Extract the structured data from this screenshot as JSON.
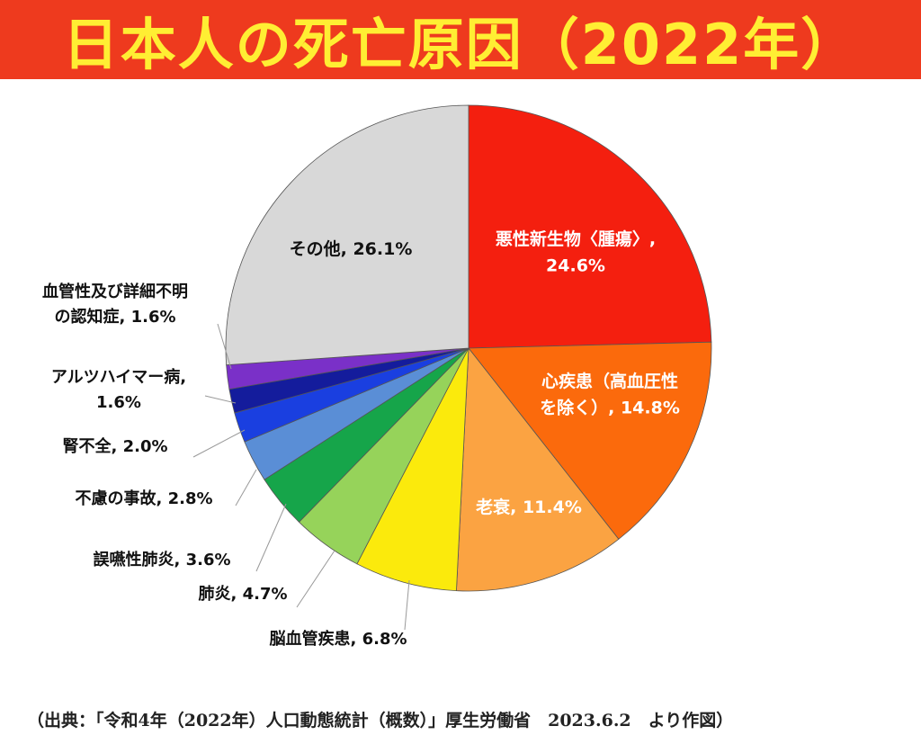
{
  "title": "日本人の死亡原因（2022年）",
  "source": "（出典：「令和4年（2022年）人口動態統計（概数）」厚生労働省　2023.6.2　より作図）",
  "chart_data": {
    "type": "pie",
    "title": "日本人の死亡原因（2022年）",
    "start": "12 o'clock",
    "direction": "clockwise",
    "slices": [
      {
        "label": "悪性新生物〈腫瘍〉,",
        "label_lines": [
          "悪性新生物〈腫瘍〉,",
          "24.6%"
        ],
        "value": 24.6,
        "color": "#f41f0f",
        "label_position": "inside",
        "label_color": "#ffffff"
      },
      {
        "label": "心疾患（高血圧性を除く）",
        "label_lines": [
          "心疾患（高血圧性",
          "を除く）, 14.8%"
        ],
        "value": 14.8,
        "color": "#fb6a0c",
        "label_position": "inside",
        "label_color": "#ffffff"
      },
      {
        "label": "老衰",
        "label_lines": [
          "老衰, 11.4%"
        ],
        "value": 11.4,
        "color": "#fba342",
        "label_position": "inside",
        "label_color": "#ffffff"
      },
      {
        "label": "脳血管疾患",
        "label_lines": [
          "脳血管疾患, 6.8%"
        ],
        "value": 6.8,
        "color": "#fbea0c",
        "label_position": "outside",
        "label_color": "#111111"
      },
      {
        "label": "肺炎",
        "label_lines": [
          "肺炎, 4.7%"
        ],
        "value": 4.7,
        "color": "#96d35a",
        "label_position": "outside",
        "label_color": "#111111"
      },
      {
        "label": "誤嚥性肺炎",
        "label_lines": [
          "誤嚥性肺炎, 3.6%"
        ],
        "value": 3.6,
        "color": "#16a54a",
        "label_position": "outside",
        "label_color": "#111111"
      },
      {
        "label": "不慮の事故",
        "label_lines": [
          "不慮の事故, 2.8%"
        ],
        "value": 2.8,
        "color": "#5a8ed6",
        "label_position": "outside",
        "label_color": "#111111"
      },
      {
        "label": "腎不全",
        "label_lines": [
          "腎不全, 2.0%"
        ],
        "value": 2.0,
        "color": "#1a3fe0",
        "label_position": "outside",
        "label_color": "#111111"
      },
      {
        "label": "アルツハイマー病",
        "label_lines": [
          "アルツハイマー病,",
          "1.6%"
        ],
        "value": 1.6,
        "color": "#141c9c",
        "label_position": "outside",
        "label_color": "#111111"
      },
      {
        "label": "血管性及び詳細不明の認知症",
        "label_lines": [
          "血管性及び詳細不明",
          "の認知症, 1.6%"
        ],
        "value": 1.6,
        "color": "#7a30c8",
        "label_position": "outside",
        "label_color": "#111111"
      },
      {
        "label": "その他",
        "label_lines": [
          "その他, 26.1%"
        ],
        "value": 26.1,
        "color": "#d8d8d8",
        "label_position": "inside",
        "label_color": "#111111"
      }
    ]
  }
}
